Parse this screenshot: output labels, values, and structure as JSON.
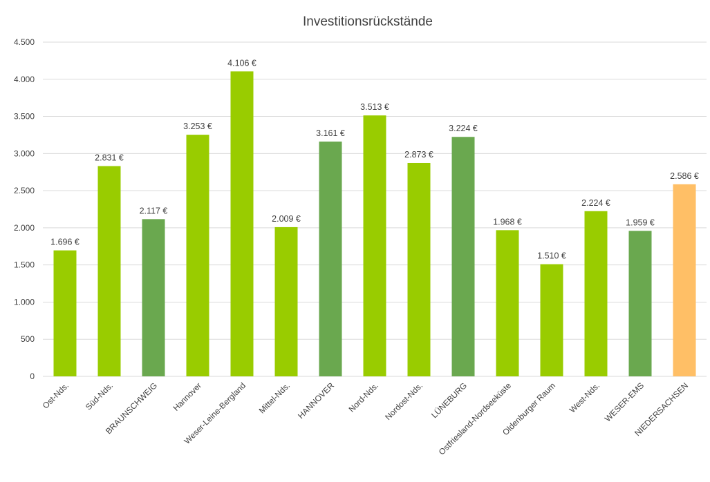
{
  "chart_data": {
    "type": "bar",
    "title": "Investitionsrückstände",
    "xlabel": "",
    "ylabel": "",
    "ylim": [
      0,
      4500
    ],
    "yticks": [
      0,
      500,
      1000,
      1500,
      2000,
      2500,
      3000,
      3500,
      4000,
      4500
    ],
    "ytick_labels": [
      "0",
      "500",
      "1.000",
      "1.500",
      "2.000",
      "2.500",
      "3.000",
      "3.500",
      "4.000",
      "4.500"
    ],
    "grid": true,
    "legend": "none",
    "categories": [
      "Ost-Nds.",
      "Süd-Nds.",
      "BRAUNSCHWEIG",
      "Hannover",
      "Weser-Leine-Bergland",
      "Mittel-Nds.",
      "HANNOVER",
      "Nord-Nds.",
      "Nordost-Nds.",
      "LÜNEBURG",
      "Ostfriesland-Nordseeküste",
      "Oldenburger Raum",
      "West-Nds.",
      "WESER-EMS",
      "NIEDERSACHSEN"
    ],
    "values": [
      1696,
      2831,
      2117,
      3253,
      4106,
      2009,
      3161,
      3513,
      2873,
      3224,
      1968,
      1510,
      2224,
      1959,
      2586
    ],
    "data_labels": [
      "1.696 €",
      "2.831 €",
      "2.117 €",
      "3.253 €",
      "4.106 €",
      "2.009 €",
      "3.161 €",
      "3.513 €",
      "2.873 €",
      "3.224 €",
      "1.968 €",
      "1.510 €",
      "2.224 €",
      "1.959 €",
      "2.586 €"
    ],
    "bar_colors": [
      "#99cc00",
      "#99cc00",
      "#6aa84f",
      "#99cc00",
      "#99cc00",
      "#99cc00",
      "#6aa84f",
      "#99cc00",
      "#99cc00",
      "#6aa84f",
      "#99cc00",
      "#99cc00",
      "#99cc00",
      "#6aa84f",
      "#ffbf66"
    ],
    "colors": {
      "region": "#99cc00",
      "district": "#6aa84f",
      "state": "#ffbf66",
      "gridline": "#d9d9d9",
      "text": "#404040"
    }
  }
}
